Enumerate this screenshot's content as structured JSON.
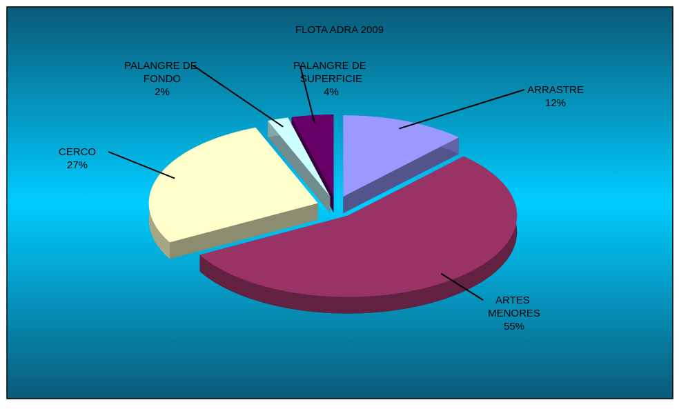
{
  "chart_data": {
    "type": "pie",
    "title": "FLOTA ADRA 2009",
    "categories": [
      "ARRASTRE",
      "ARTES MENORES",
      "CERCO",
      "PALANGRE DE FONDO",
      "PALANGRE DE SUPERFICIE"
    ],
    "values": [
      12,
      55,
      27,
      2,
      4
    ],
    "value_labels": [
      "12%",
      "55%",
      "27%",
      "2%",
      "4%"
    ],
    "colors": [
      "#9999ff",
      "#993366",
      "#ffffcc",
      "#ccffff",
      "#660066"
    ]
  }
}
